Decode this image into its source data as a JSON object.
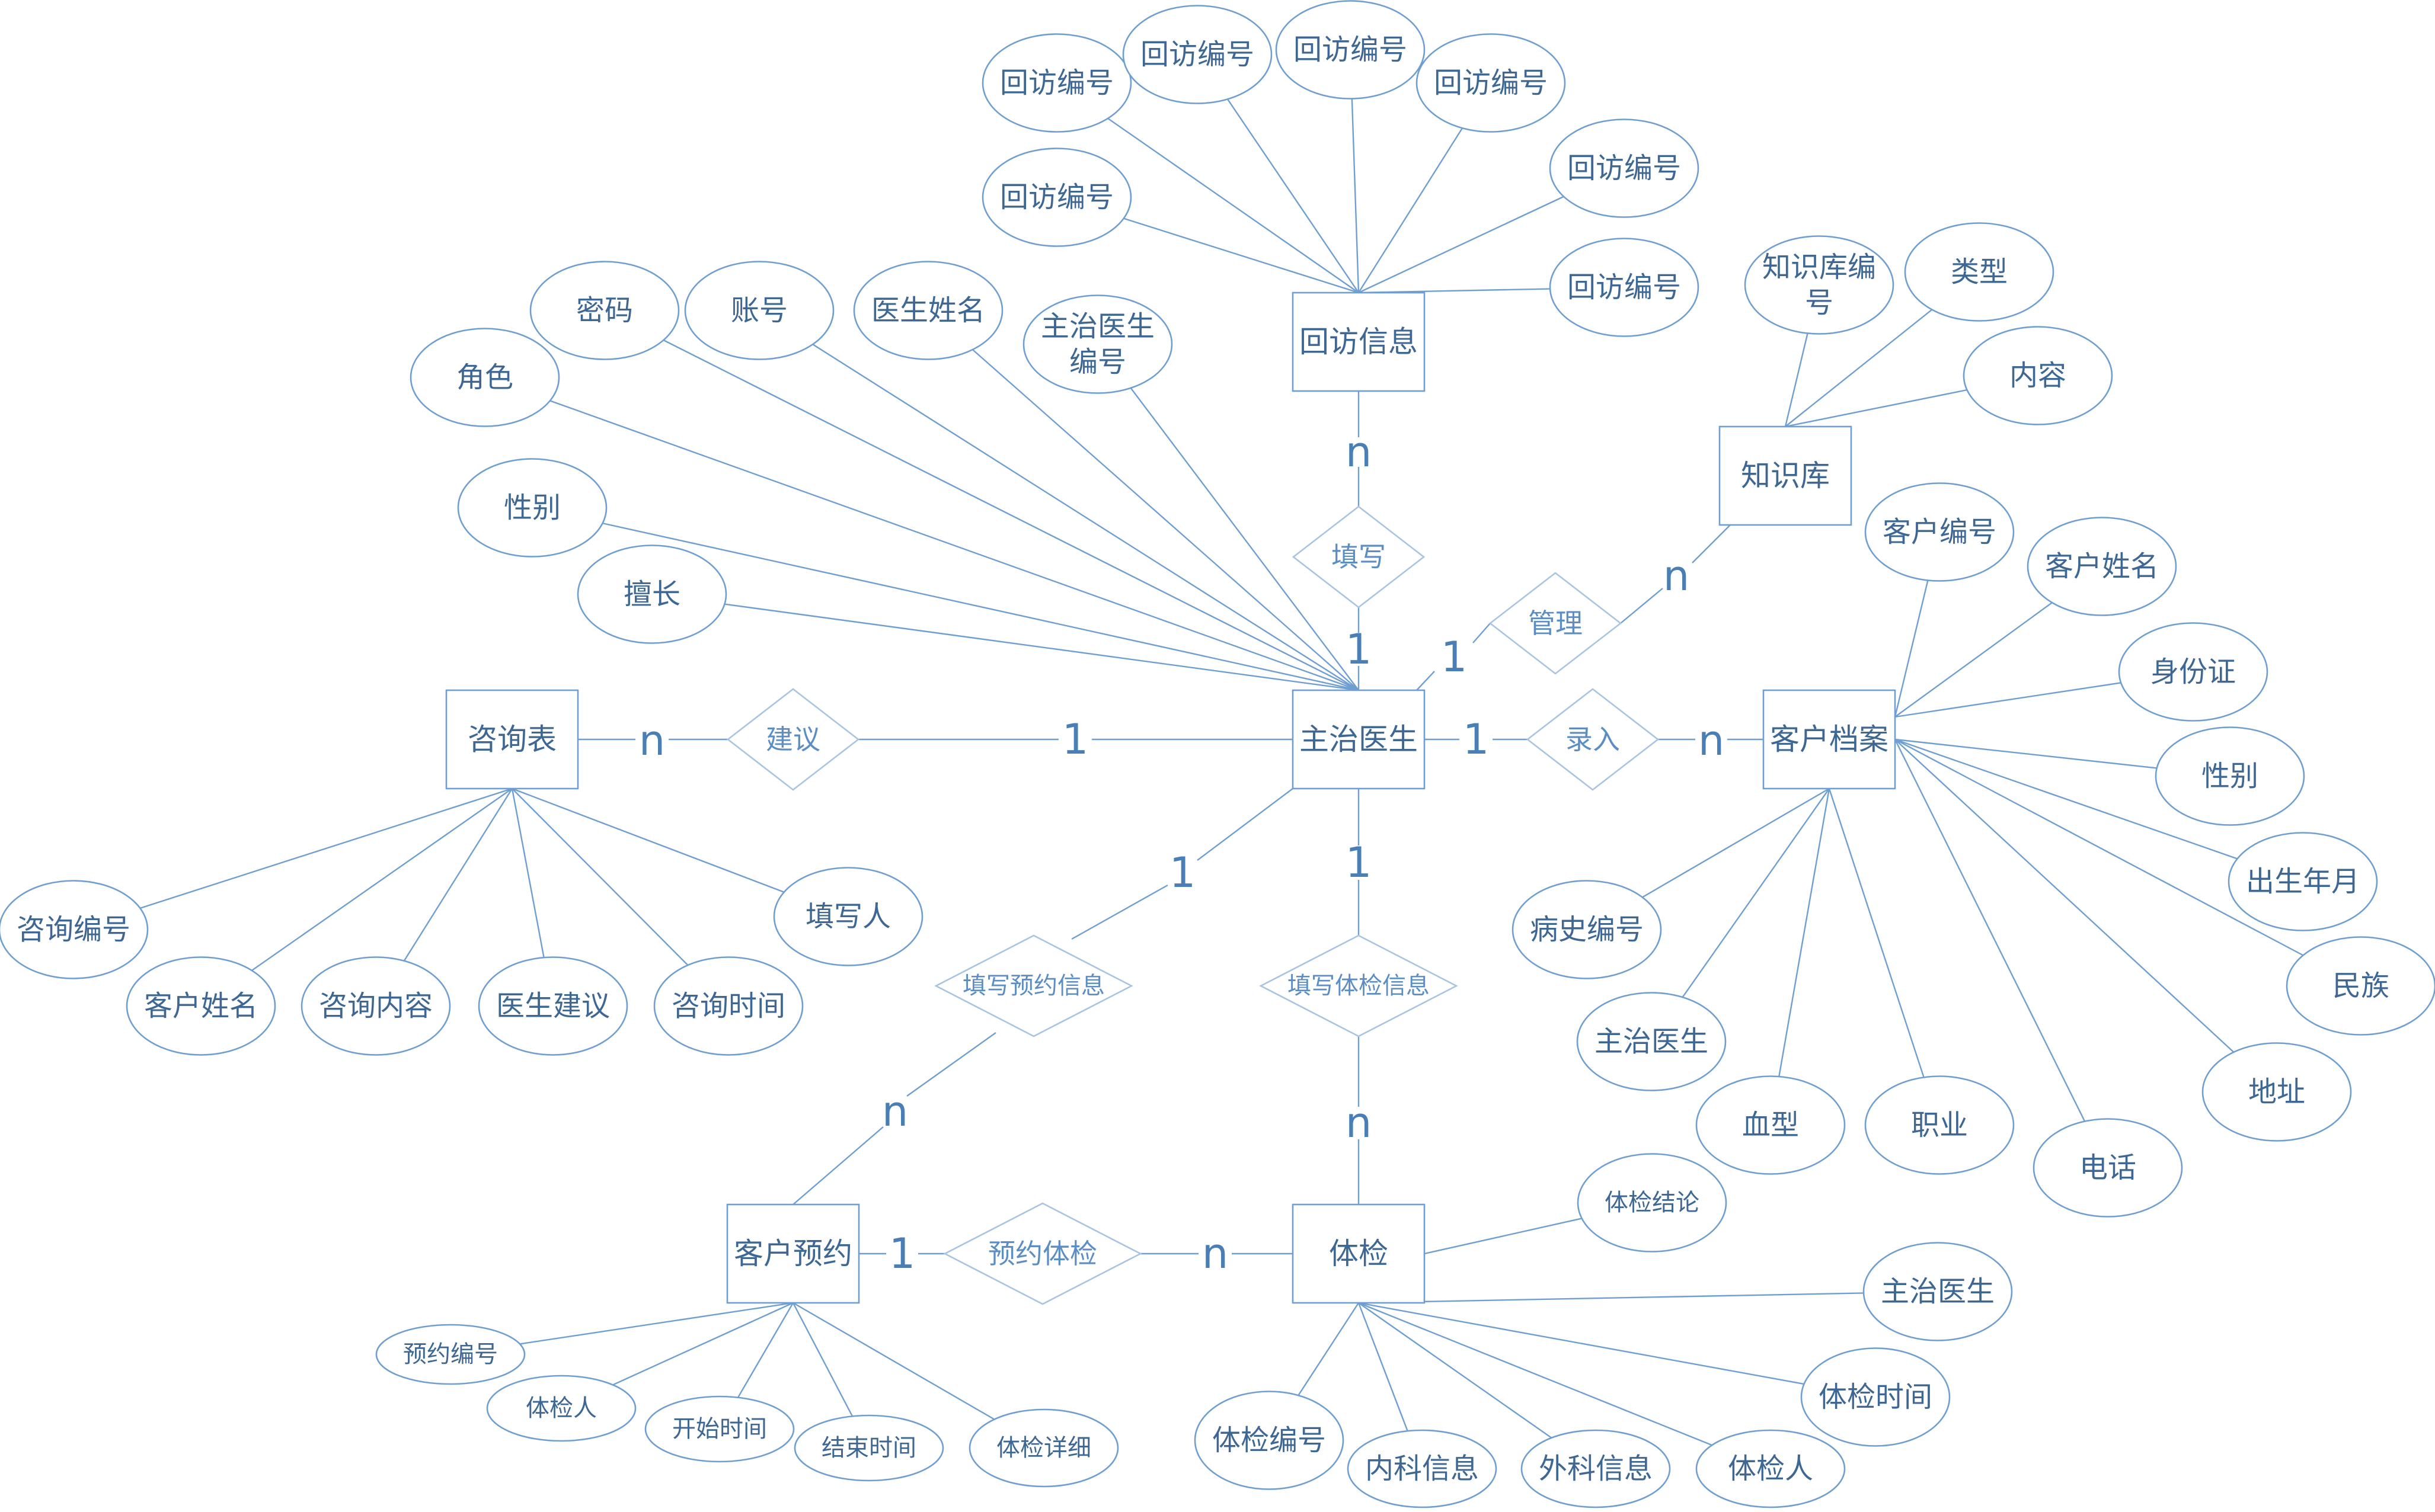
{
  "diagram": {
    "colors": {
      "line": "#6f9fd1",
      "text": "#3e6893",
      "relation_text": "#5c8ec4",
      "background": "#ffffff"
    },
    "entities": [
      {
        "id": "followup",
        "label": "回访信息"
      },
      {
        "id": "doctor",
        "label": "主治医生"
      },
      {
        "id": "knowledge",
        "label": "知识库"
      },
      {
        "id": "consult",
        "label": "咨询表"
      },
      {
        "id": "customer",
        "label": "客户档案"
      },
      {
        "id": "appointment",
        "label": "客户预约"
      },
      {
        "id": "exam",
        "label": "体检"
      }
    ],
    "relationships": [
      {
        "id": "fill",
        "label": "填写"
      },
      {
        "id": "manage",
        "label": "管理"
      },
      {
        "id": "suggest",
        "label": "建议"
      },
      {
        "id": "enter",
        "label": "录入"
      },
      {
        "id": "fill_appointment",
        "label": "填写预约信息"
      },
      {
        "id": "fill_exam",
        "label": "填写体检信息"
      },
      {
        "id": "book_exam",
        "label": "预约体检"
      }
    ],
    "attributes": [
      {
        "id": "fu1",
        "label": "回访编号"
      },
      {
        "id": "fu2",
        "label": "回访编号"
      },
      {
        "id": "fu3",
        "label": "回访编号"
      },
      {
        "id": "fu4",
        "label": "回访编号"
      },
      {
        "id": "fu5",
        "label": "回访编号"
      },
      {
        "id": "fu6",
        "label": "回访编号"
      },
      {
        "id": "fu7",
        "label": "回访编号"
      },
      {
        "id": "kb_id_1",
        "label": "知识库编",
        "label2": "号"
      },
      {
        "id": "kb_type",
        "label": "类型"
      },
      {
        "id": "kb_content",
        "label": "内容"
      },
      {
        "id": "doc_role",
        "label": "角色"
      },
      {
        "id": "doc_pwd",
        "label": "密码"
      },
      {
        "id": "doc_acct",
        "label": "账号"
      },
      {
        "id": "doc_name",
        "label": "医生姓名"
      },
      {
        "id": "doc_id",
        "label": "主治医生",
        "label2": "编号"
      },
      {
        "id": "doc_gender",
        "label": "性别"
      },
      {
        "id": "doc_skill",
        "label": "擅长"
      },
      {
        "id": "c_id",
        "label": "客户编号"
      },
      {
        "id": "c_name",
        "label": "客户姓名"
      },
      {
        "id": "c_idcard",
        "label": "身份证"
      },
      {
        "id": "c_gender",
        "label": "性别"
      },
      {
        "id": "c_birth",
        "label": "出生年月"
      },
      {
        "id": "c_ethnic",
        "label": "民族"
      },
      {
        "id": "c_addr",
        "label": "地址"
      },
      {
        "id": "c_phone",
        "label": "电话"
      },
      {
        "id": "c_job",
        "label": "职业"
      },
      {
        "id": "c_blood",
        "label": "血型"
      },
      {
        "id": "c_doctor",
        "label": "主治医生"
      },
      {
        "id": "c_history",
        "label": "病史编号"
      },
      {
        "id": "q_id",
        "label": "咨询编号"
      },
      {
        "id": "q_cname",
        "label": "客户姓名"
      },
      {
        "id": "q_content",
        "label": "咨询内容"
      },
      {
        "id": "q_advice",
        "label": "医生建议"
      },
      {
        "id": "q_time",
        "label": "咨询时间"
      },
      {
        "id": "q_writer",
        "label": "填写人"
      },
      {
        "id": "a_id",
        "label": "预约编号"
      },
      {
        "id": "a_person",
        "label": "体检人"
      },
      {
        "id": "a_start",
        "label": "开始时间"
      },
      {
        "id": "a_end",
        "label": "结束时间"
      },
      {
        "id": "a_detail",
        "label": "体检详细"
      },
      {
        "id": "e_conclusion",
        "label": "体检结论"
      },
      {
        "id": "e_doctor",
        "label": "主治医生"
      },
      {
        "id": "e_time",
        "label": "体检时间"
      },
      {
        "id": "e_person",
        "label": "体检人"
      },
      {
        "id": "e_surgery",
        "label": "外科信息"
      },
      {
        "id": "e_internal",
        "label": "内科信息"
      },
      {
        "id": "e_id",
        "label": "体检编号"
      }
    ],
    "cardinalities": [
      {
        "id": "fill_n",
        "label": "n"
      },
      {
        "id": "fill_1",
        "label": "1"
      },
      {
        "id": "manage_1",
        "label": "1"
      },
      {
        "id": "manage_n",
        "label": "n"
      },
      {
        "id": "suggest_n",
        "label": "n"
      },
      {
        "id": "suggest_1",
        "label": "1"
      },
      {
        "id": "enter_1",
        "label": "1"
      },
      {
        "id": "enter_n",
        "label": "n"
      },
      {
        "id": "fa_1",
        "label": "1"
      },
      {
        "id": "fa_n",
        "label": "n"
      },
      {
        "id": "fe_1",
        "label": "1"
      },
      {
        "id": "fe_n",
        "label": "n"
      },
      {
        "id": "book_1",
        "label": "1"
      },
      {
        "id": "book_n",
        "label": "n"
      }
    ]
  }
}
